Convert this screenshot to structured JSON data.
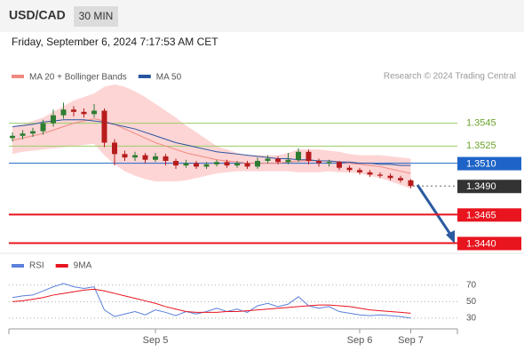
{
  "header": {
    "symbol": "USD/CAD",
    "interval": "30 MIN",
    "datetime": "Friday, September 6, 2024 7:17:53 AM CET"
  },
  "chart_data": [
    {
      "type": "candlestick",
      "source": "Research © 2024 Trading Central",
      "categories": [
        null,
        null,
        null,
        null,
        null,
        null,
        null,
        null,
        null,
        null,
        null,
        null,
        null,
        null,
        "Sep 5",
        null,
        null,
        null,
        null,
        null,
        null,
        null,
        null,
        null,
        null,
        null,
        null,
        null,
        null,
        null,
        null,
        null,
        null,
        null,
        "Sep 6",
        null,
        null,
        null,
        null,
        "Sep 7"
      ],
      "open": [
        1.3532,
        1.3534,
        1.3536,
        1.3538,
        1.3545,
        1.3552,
        1.3557,
        1.3555,
        1.3553,
        1.3556,
        1.3528,
        1.3518,
        1.3515,
        1.3517,
        1.3513,
        1.3516,
        1.3512,
        1.3508,
        1.351,
        1.3507,
        1.3509,
        1.3511,
        1.3508,
        1.351,
        1.3507,
        1.3512,
        1.3514,
        1.3511,
        1.3513,
        1.352,
        1.3512,
        1.351,
        1.3511,
        1.3506,
        1.3504,
        1.3502,
        1.35,
        1.3499,
        1.3497,
        1.3495
      ],
      "high": [
        1.3537,
        1.3539,
        1.3541,
        1.3548,
        1.3557,
        1.3563,
        1.356,
        1.3558,
        1.3562,
        1.3558,
        1.3531,
        1.3521,
        1.352,
        1.3519,
        1.3519,
        1.3518,
        1.3514,
        1.3513,
        1.3512,
        1.3511,
        1.3513,
        1.3513,
        1.3512,
        1.3512,
        1.3515,
        1.3517,
        1.3516,
        1.3519,
        1.3523,
        1.3522,
        1.3514,
        1.3513,
        1.3512,
        1.3508,
        1.3506,
        1.3504,
        1.3502,
        1.3501,
        1.3499,
        1.3496
      ],
      "low": [
        1.3529,
        1.3531,
        1.3533,
        1.3535,
        1.3542,
        1.3549,
        1.3551,
        1.355,
        1.355,
        1.3524,
        1.3508,
        1.3512,
        1.3512,
        1.351,
        1.3511,
        1.3508,
        1.3505,
        1.3506,
        1.3505,
        1.3505,
        1.3507,
        1.3506,
        1.3506,
        1.3505,
        1.3505,
        1.351,
        1.3509,
        1.3509,
        1.3511,
        1.3509,
        1.3507,
        1.3507,
        1.3504,
        1.3502,
        1.35,
        1.3498,
        1.3497,
        1.3495,
        1.3493,
        1.3488
      ],
      "close": [
        1.3534,
        1.3536,
        1.3538,
        1.3545,
        1.3552,
        1.3557,
        1.3555,
        1.3553,
        1.3556,
        1.3528,
        1.3518,
        1.3515,
        1.3517,
        1.3513,
        1.3516,
        1.3512,
        1.3508,
        1.351,
        1.3507,
        1.3509,
        1.3511,
        1.3508,
        1.351,
        1.3507,
        1.3512,
        1.3514,
        1.3511,
        1.3513,
        1.352,
        1.3512,
        1.351,
        1.3511,
        1.3506,
        1.3504,
        1.3502,
        1.35,
        1.3499,
        1.3497,
        1.3495,
        1.349
      ],
      "up_color": "#2e7d32",
      "down_color": "#b71c1c",
      "series": [
        {
          "name": "MA 20 + Bollinger Bands",
          "color": "#f08a80",
          "band_color": "#fdd5d5",
          "values": [
            1.353,
            1.3532,
            1.3534,
            1.3536,
            1.3539,
            1.3542,
            1.3545,
            1.3547,
            1.3549,
            1.3547,
            1.3544,
            1.354,
            1.3536,
            1.3532,
            1.3528,
            1.3525,
            1.3522,
            1.3519,
            1.3517,
            1.3515,
            1.3513,
            1.3512,
            1.3511,
            1.351,
            1.351,
            1.351,
            1.351,
            1.3511,
            1.3512,
            1.3512,
            1.3512,
            1.3512,
            1.3511,
            1.351,
            1.3509,
            1.3508,
            1.3507,
            1.3505,
            1.3503,
            1.3501
          ],
          "upper": [
            1.3542,
            1.3544,
            1.3547,
            1.355,
            1.3555,
            1.356,
            1.3565,
            1.3568,
            1.3571,
            1.3577,
            1.3579,
            1.3577,
            1.3573,
            1.3568,
            1.3562,
            1.3556,
            1.355,
            1.3543,
            1.3537,
            1.3531,
            1.3525,
            1.3522,
            1.3519,
            1.3517,
            1.3517,
            1.3517,
            1.3517,
            1.3519,
            1.3522,
            1.3522,
            1.3522,
            1.3521,
            1.352,
            1.3518,
            1.3517,
            1.3517,
            1.3517,
            1.3516,
            1.3515,
            1.3514
          ],
          "lower": [
            1.3518,
            1.352,
            1.3521,
            1.3522,
            1.3523,
            1.3524,
            1.3525,
            1.3526,
            1.3527,
            1.3517,
            1.3509,
            1.3503,
            1.3499,
            1.3496,
            1.3494,
            1.3494,
            1.3494,
            1.3495,
            1.3497,
            1.3499,
            1.3501,
            1.3502,
            1.3503,
            1.3503,
            1.3503,
            1.3503,
            1.3503,
            1.3503,
            1.3502,
            1.3502,
            1.3502,
            1.3503,
            1.3502,
            1.3502,
            1.3501,
            1.3499,
            1.3497,
            1.3494,
            1.3491,
            1.3488
          ]
        },
        {
          "name": "MA 50",
          "color": "#2a55a0",
          "values": [
            1.3542,
            1.3543,
            1.3544,
            1.3546,
            1.3547,
            1.3548,
            1.3548,
            1.3548,
            1.3547,
            1.3546,
            1.3544,
            1.3542,
            1.354,
            1.3537,
            1.3534,
            1.3531,
            1.3528,
            1.3526,
            1.3524,
            1.3522,
            1.352,
            1.3519,
            1.3518,
            1.3517,
            1.3516,
            1.3515,
            1.3514,
            1.3514,
            1.3513,
            1.3513,
            1.3512,
            1.3512,
            1.3511,
            1.3511,
            1.351,
            1.351,
            1.3509,
            1.3509,
            1.3508,
            1.3508
          ]
        }
      ],
      "levels": [
        {
          "value": 1.3545,
          "label": "1.3545",
          "color": "#9ccc65",
          "label_style": "plain"
        },
        {
          "value": 1.3525,
          "label": "1.3525",
          "color": "#9ccc65",
          "label_style": "plain"
        },
        {
          "value": 1.351,
          "label": "1.3510",
          "color": "#1e64c8",
          "label_style": "boxed"
        },
        {
          "value": 1.349,
          "label": "1.3490",
          "color": "#333333",
          "label_style": "boxed",
          "line": "dotted"
        },
        {
          "value": 1.3465,
          "label": "1.3465",
          "color": "#e8141e",
          "label_style": "boxed"
        },
        {
          "value": 1.344,
          "label": "1.3440",
          "color": "#e8141e",
          "label_style": "boxed"
        }
      ],
      "ylim": [
        1.3431,
        1.3579
      ]
    },
    {
      "type": "line",
      "series": [
        {
          "name": "RSI",
          "color": "#5b7fdb",
          "values": [
            55,
            57,
            58,
            63,
            68,
            72,
            68,
            66,
            68,
            40,
            32,
            35,
            38,
            34,
            40,
            37,
            33,
            38,
            35,
            38,
            42,
            38,
            41,
            37,
            45,
            48,
            44,
            47,
            56,
            45,
            42,
            44,
            38,
            36,
            34,
            33,
            34,
            33,
            32,
            30
          ]
        },
        {
          "name": "9MA",
          "color": "#e8141e",
          "values": [
            50,
            51,
            53,
            55,
            58,
            60,
            62,
            64,
            65,
            63,
            60,
            57,
            54,
            51,
            48,
            44,
            41,
            38,
            37,
            37,
            37,
            38,
            38,
            39,
            40,
            41,
            42,
            43,
            44,
            45,
            46,
            46,
            45,
            44,
            42,
            40,
            39,
            38,
            37,
            36
          ]
        }
      ],
      "ylim": [
        17,
        87
      ],
      "yticks": [
        70,
        50,
        30
      ],
      "grid": true
    }
  ]
}
